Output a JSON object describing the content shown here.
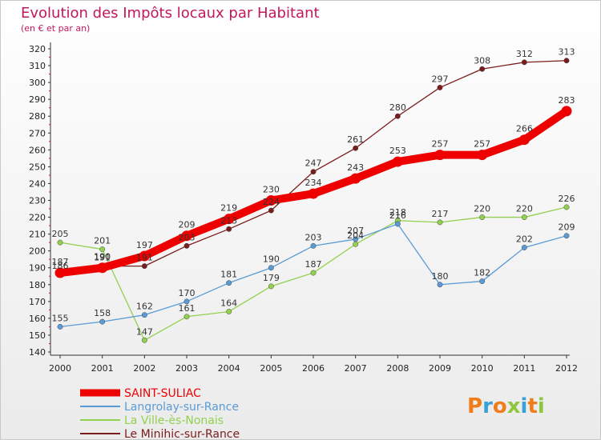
{
  "chart_data": {
    "type": "line",
    "title": "Evolution des Impôts locaux par Habitant",
    "subtitle": "(en € et par an)",
    "x": [
      "2000",
      "2001",
      "2002",
      "2003",
      "2004",
      "2005",
      "2006",
      "2007",
      "2008",
      "2009",
      "2010",
      "2011",
      "2012"
    ],
    "ylim": [
      140,
      320
    ],
    "yticks": [
      140,
      150,
      160,
      170,
      180,
      190,
      200,
      210,
      220,
      230,
      240,
      250,
      260,
      270,
      280,
      290,
      300,
      310,
      320
    ],
    "grid": false,
    "legend_position": "bottom-left",
    "series": [
      {
        "name": "SAINT-SULIAC",
        "color": "#ee0000",
        "values": [
          187,
          190,
          197,
          209,
          219,
          230,
          234,
          243,
          253,
          257,
          257,
          266,
          283
        ]
      },
      {
        "name": "Langrolay-sur-Rance",
        "color": "#5b9bd5",
        "values": [
          155,
          158,
          162,
          170,
          181,
          190,
          203,
          207,
          216,
          180,
          182,
          202,
          209
        ]
      },
      {
        "name": "La Ville-ès-Nonais",
        "color": "#92d050",
        "values": [
          205,
          201,
          147,
          161,
          164,
          179,
          187,
          204,
          218,
          217,
          220,
          220,
          226
        ]
      },
      {
        "name": "Le Minihic-sur-Rance",
        "color": "#7b1c1c",
        "values": [
          186,
          191,
          191,
          203,
          213,
          224,
          247,
          261,
          280,
          297,
          308,
          312,
          313
        ]
      }
    ],
    "data_labels": [
      [
        "187",
        "190",
        "197",
        "209",
        "219",
        "230",
        "234",
        "243",
        "253",
        "257",
        "257",
        "266",
        "283"
      ],
      [
        "155",
        "158",
        "162",
        "170",
        "181",
        "190",
        "203",
        "207",
        "216",
        "180",
        "182",
        "202",
        "209"
      ],
      [
        "205",
        "201",
        "147",
        "161",
        "164",
        "179",
        "187",
        "204",
        "218",
        "217",
        "220",
        "220",
        "226"
      ],
      [
        "186",
        "191",
        "191",
        "203",
        "213",
        "224",
        "247",
        "261",
        "280",
        "297",
        "308",
        "312",
        "313"
      ]
    ]
  },
  "brand": {
    "text": "Proxiti",
    "colors": [
      "#f07d19",
      "#3aa0d8",
      "#f07d19",
      "#8dc63f",
      "#3aa0d8",
      "#f07d19",
      "#8dc63f"
    ]
  }
}
